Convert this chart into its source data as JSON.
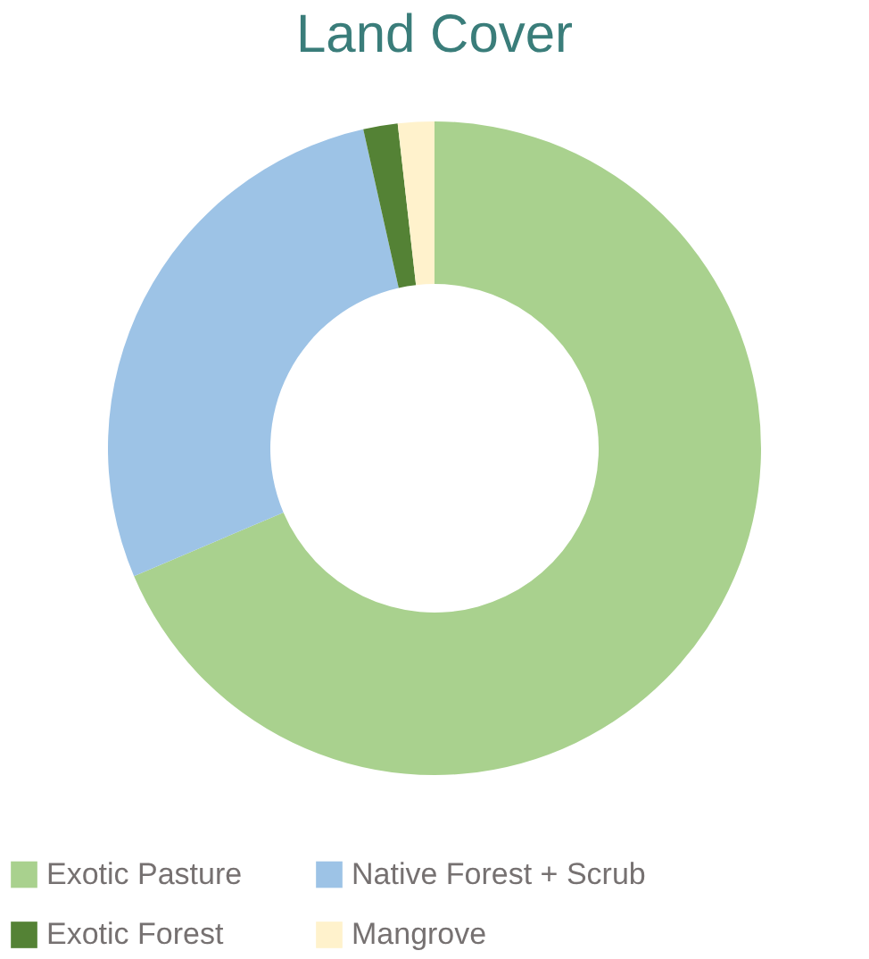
{
  "chart_data": {
    "type": "donut",
    "title": "Land Cover",
    "categories": [
      "Exotic Pasture",
      "Native Forest + Scrub",
      "Exotic Forest",
      "Mangrove"
    ],
    "values": [
      68.6,
      27.9,
      1.7,
      1.8
    ],
    "colors": [
      "#a9d18e",
      "#9dc3e6",
      "#548235",
      "#fff2cc"
    ],
    "legend": "bottom"
  }
}
